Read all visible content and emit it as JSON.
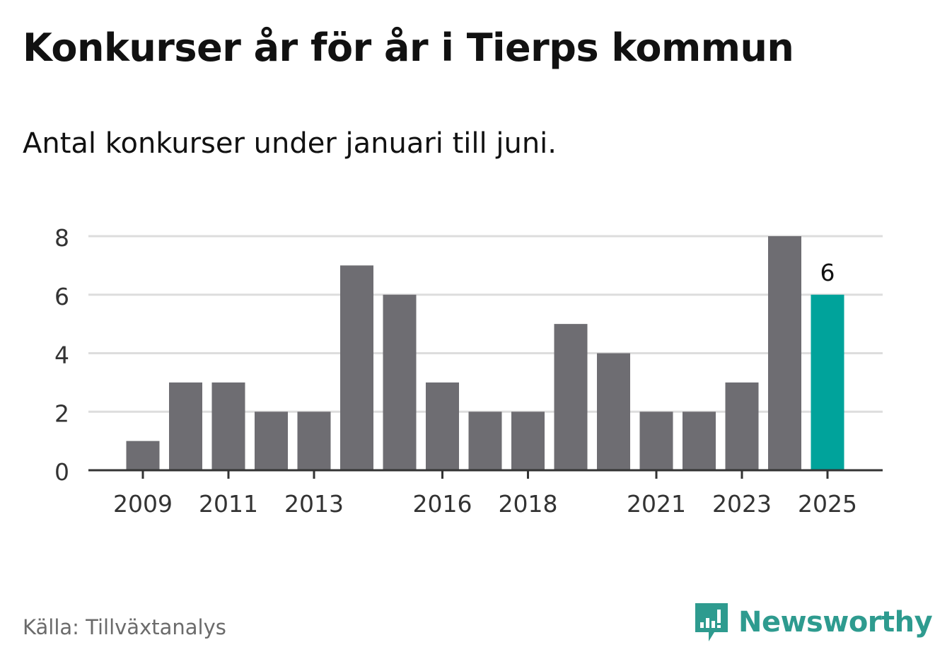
{
  "title": "Konkurser år för år i Tierps kommun",
  "subtitle": "Antal konkurser under januari till juni.",
  "source": "Källa: Tillväxtanalys",
  "brand": "Newsworthy",
  "colors": {
    "bar": "#6e6d72",
    "highlight": "#00a39b",
    "grid": "#dddddd",
    "axis": "#333333",
    "brand": "#2e9b8f"
  },
  "chart_data": {
    "type": "bar",
    "categories": [
      "2009",
      "2010",
      "2011",
      "2012",
      "2013",
      "2014",
      "2015",
      "2016",
      "2017",
      "2018",
      "2019",
      "2020",
      "2021",
      "2022",
      "2023",
      "2024",
      "2025"
    ],
    "values": [
      1,
      3,
      3,
      2,
      2,
      7,
      6,
      3,
      2,
      2,
      5,
      4,
      2,
      2,
      3,
      8,
      6
    ],
    "xtick_labels": [
      "2009",
      "2011",
      "2013",
      "2016",
      "2018",
      "2021",
      "2023",
      "2025"
    ],
    "yticks": [
      0,
      2,
      4,
      6,
      8
    ],
    "ylim": [
      0,
      8
    ],
    "highlight": {
      "category": "2025",
      "label": "6"
    },
    "grid": true,
    "xlabel": "",
    "ylabel": ""
  }
}
